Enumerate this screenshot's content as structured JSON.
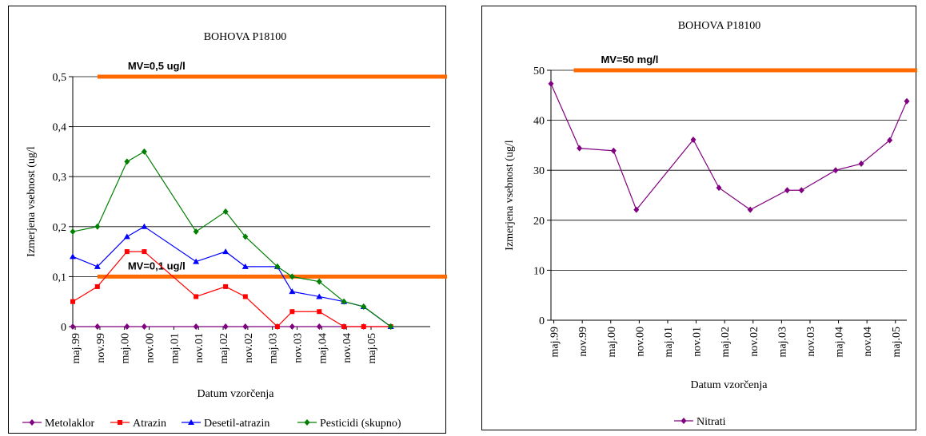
{
  "chart_data": [
    {
      "type": "line",
      "title": "BOHOVA P18100",
      "xlabel": "Datum vzorčenja",
      "ylabel": "Izmerjena vsebnost (ug/l",
      "ylim": [
        0,
        0.5
      ],
      "yticks": [
        "0",
        "0,1",
        "0,2",
        "0,3",
        "0,4",
        "0,5"
      ],
      "ytick_values": [
        0,
        0.1,
        0.2,
        0.3,
        0.4,
        0.5
      ],
      "xlim": [
        0,
        14.5
      ],
      "xtick_labels": [
        "maj.99",
        "nov.99",
        "maj.00",
        "nov.00",
        "maj.01",
        "nov.01",
        "maj.02",
        "nov.02",
        "maj.03",
        "nov.03",
        "maj.04",
        "nov.04",
        "maj.05"
      ],
      "x": [
        0,
        1,
        2.2,
        2.9,
        5,
        6.2,
        7,
        8.3,
        8.9,
        10,
        11,
        11.8,
        12.9
      ],
      "grid": true,
      "legend_position": "bottom",
      "thresholds": [
        {
          "label": "MV=0,5 ug/l",
          "value": 0.5,
          "x_start": 1,
          "color": "#ff6a00"
        },
        {
          "label": "MV=0,1 ug/l",
          "value": 0.1,
          "x_start": 1,
          "color": "#ff6a00"
        }
      ],
      "series": [
        {
          "name": "Metolaklor",
          "color": "#800080",
          "marker": "diamond",
          "x": [
            0,
            1,
            2.2,
            2.9,
            5,
            6.2,
            7,
            8.3,
            8.9,
            10,
            11,
            11.8,
            12.9
          ],
          "values": [
            0,
            0,
            0,
            0,
            0,
            0,
            0,
            0,
            0,
            0,
            0,
            0,
            0
          ]
        },
        {
          "name": "Atrazin",
          "color": "#ff0000",
          "marker": "square",
          "x": [
            0,
            1,
            2.2,
            2.9,
            5,
            6.2,
            7,
            8.3,
            8.9,
            10,
            11,
            11.8,
            12.9
          ],
          "values": [
            0.05,
            0.08,
            0.15,
            0.15,
            0.06,
            0.08,
            0.06,
            0,
            0.03,
            0.03,
            0,
            0,
            0
          ]
        },
        {
          "name": "Desetil-atrazin",
          "color": "#0000ff",
          "marker": "triangle",
          "x": [
            0,
            1,
            2.2,
            2.9,
            5,
            6.2,
            7,
            8.3,
            8.9,
            10,
            11,
            11.8,
            12.9
          ],
          "values": [
            0.14,
            0.12,
            0.18,
            0.2,
            0.13,
            0.15,
            0.12,
            0.12,
            0.07,
            0.06,
            0.05,
            0.04,
            0
          ]
        },
        {
          "name": "Pesticidi (skupno)",
          "color": "#008000",
          "marker": "diamond",
          "x": [
            0,
            1,
            2.2,
            2.9,
            5,
            6.2,
            7,
            8.3,
            8.9,
            10,
            11,
            11.8,
            12.9
          ],
          "values": [
            0.19,
            0.2,
            0.33,
            0.35,
            0.19,
            0.23,
            0.18,
            0.12,
            0.1,
            0.09,
            0.05,
            0.04,
            0
          ]
        }
      ]
    },
    {
      "type": "line",
      "title": "BOHOVA P18100",
      "xlabel": "Datum vzorčenja",
      "ylabel": "Izmerjena vsebnost (ug/l",
      "ylim": [
        0,
        50
      ],
      "yticks": [
        "0",
        "10",
        "20",
        "30",
        "40",
        "50"
      ],
      "ytick_values": [
        0,
        10,
        20,
        30,
        40,
        50
      ],
      "xlim": [
        0,
        12.5
      ],
      "xtick_labels": [
        "maj.99",
        "nov.99",
        "maj.00",
        "nov.00",
        "maj.01",
        "nov.01",
        "maj.02",
        "nov.02",
        "maj.03",
        "nov.03",
        "maj.04",
        "nov.04",
        "maj.05"
      ],
      "grid": true,
      "legend_position": "bottom",
      "thresholds": [
        {
          "label": "MV=50 mg/l",
          "value": 50,
          "x_start": 0.8,
          "color": "#ff6a00"
        }
      ],
      "series": [
        {
          "name": "Nitrati",
          "color": "#800080",
          "marker": "diamond",
          "x": [
            0,
            1,
            2.2,
            3,
            5,
            5.9,
            7,
            8.3,
            8.8,
            10,
            10.9,
            11.9,
            12.5
          ],
          "values": [
            47.3,
            34.4,
            33.9,
            22.1,
            36.1,
            26.5,
            22.1,
            26,
            26,
            30,
            31.3,
            36,
            43.8
          ]
        }
      ]
    }
  ]
}
